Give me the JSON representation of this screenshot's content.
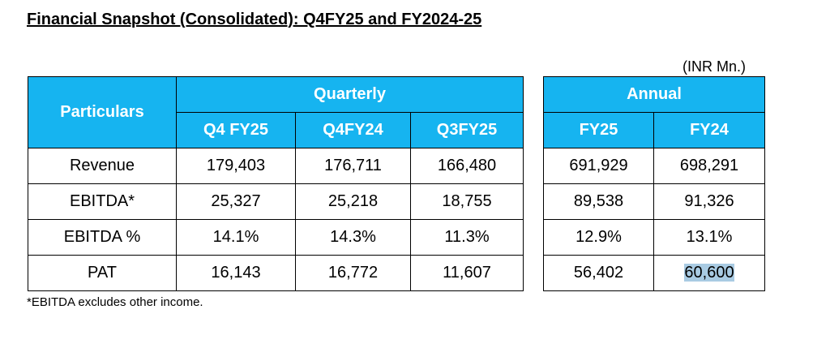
{
  "title": "Financial Snapshot (Consolidated): Q4FY25 and FY2024-25",
  "unit": "(INR Mn.)",
  "quarterly": {
    "particulars_label": "Particulars",
    "group_label": "Quarterly",
    "columns": [
      "Q4 FY25",
      "Q4FY24",
      "Q3FY25"
    ]
  },
  "annual": {
    "group_label": "Annual",
    "columns": [
      "FY25",
      "FY24"
    ]
  },
  "rows": [
    {
      "label": "Revenue",
      "quarterly": [
        "179,403",
        "176,711",
        "166,480"
      ],
      "annual": [
        "691,929",
        "698,291"
      ]
    },
    {
      "label": "EBITDA*",
      "quarterly": [
        "25,327",
        "25,218",
        "18,755"
      ],
      "annual": [
        "89,538",
        "91,326"
      ]
    },
    {
      "label": "EBITDA %",
      "quarterly": [
        "14.1%",
        "14.3%",
        "11.3%"
      ],
      "annual": [
        "12.9%",
        "13.1%"
      ]
    },
    {
      "label": "PAT",
      "quarterly": [
        "16,143",
        "16,772",
        "11,607"
      ],
      "annual": [
        "56,402",
        "60,600"
      ]
    }
  ],
  "footnote": "*EBITDA excludes other income.",
  "colors": {
    "header_bg": "#16b4f0",
    "header_text": "#ffffff",
    "highlight": "#a9cbe3"
  }
}
